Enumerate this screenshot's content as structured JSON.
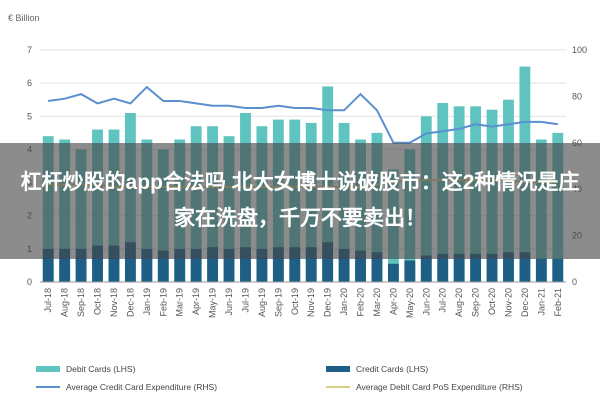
{
  "headline": "杠杆炒股的app合法吗 北大女博士说破股市：这2种情况是庄家在洗盘，千万不要卖出！",
  "chart_data": {
    "type": "bar",
    "left_unit": "€ Billion",
    "categories": [
      "Jul-18",
      "Aug-18",
      "Sep-18",
      "Oct-18",
      "Nov-18",
      "Dec-18",
      "Jan-19",
      "Feb-19",
      "Mar-19",
      "Apr-19",
      "May-19",
      "Jun-19",
      "Jul-19",
      "Aug-19",
      "Sep-19",
      "Oct-19",
      "Nov-19",
      "Dec-19",
      "Jan-20",
      "Feb-20",
      "Mar-20",
      "Apr-20",
      "May-20",
      "Jun-20",
      "Jul-20",
      "Aug-20",
      "Sep-20",
      "Oct-20",
      "Nov-20",
      "Dec-20",
      "Jan-21",
      "Feb-21"
    ],
    "ylim_left": [
      0,
      7
    ],
    "ylim_right": [
      0,
      100
    ],
    "left_ticks": [
      0,
      1,
      2,
      3,
      4,
      5,
      6,
      7
    ],
    "right_ticks": [
      0,
      20,
      40,
      60,
      80,
      100
    ],
    "series": [
      {
        "name": "Debit Cards (LHS)",
        "kind": "bar",
        "axis": "left",
        "color": "#5fc4c0",
        "values": [
          4.4,
          4.3,
          4.0,
          4.6,
          4.6,
          5.1,
          4.3,
          4.0,
          4.3,
          4.7,
          4.7,
          4.4,
          5.1,
          4.7,
          4.9,
          4.9,
          4.8,
          5.9,
          4.8,
          4.3,
          4.5,
          3.4,
          4.0,
          5.0,
          5.4,
          5.3,
          5.3,
          5.2,
          5.5,
          6.5,
          4.3,
          4.5
        ]
      },
      {
        "name": "Credit Cards (LHS)",
        "kind": "bar",
        "axis": "left",
        "color": "#1f5f86",
        "values": [
          1.0,
          1.0,
          1.0,
          1.1,
          1.1,
          1.2,
          1.0,
          0.95,
          1.0,
          1.0,
          1.05,
          1.0,
          1.05,
          1.0,
          1.05,
          1.05,
          1.05,
          1.2,
          1.0,
          0.95,
          0.9,
          0.55,
          0.65,
          0.8,
          0.85,
          0.85,
          0.85,
          0.85,
          0.9,
          0.9,
          0.7,
          0.7
        ]
      },
      {
        "name": "Average Credit Card Expenditure (RHS)",
        "kind": "line",
        "axis": "right",
        "color": "#5a8fd0",
        "values": [
          78,
          79,
          81,
          77,
          79,
          77,
          84,
          78,
          78,
          77,
          76,
          76,
          75,
          75,
          76,
          75,
          75,
          74,
          74,
          81,
          74,
          60,
          60,
          64,
          65,
          66,
          68,
          67,
          68,
          69,
          69,
          68
        ]
      },
      {
        "name": "Average Debit Card PoS Expenditure (RHS)",
        "kind": "line",
        "axis": "right",
        "color": "#d8cf8a",
        "values": [
          42,
          42,
          42,
          42,
          41,
          41,
          41,
          41,
          41,
          41,
          41,
          41,
          41,
          41,
          41,
          41,
          41,
          41,
          41,
          41,
          42,
          43,
          44,
          44,
          44,
          44,
          44,
          44,
          44,
          43,
          43,
          43
        ]
      }
    ]
  }
}
